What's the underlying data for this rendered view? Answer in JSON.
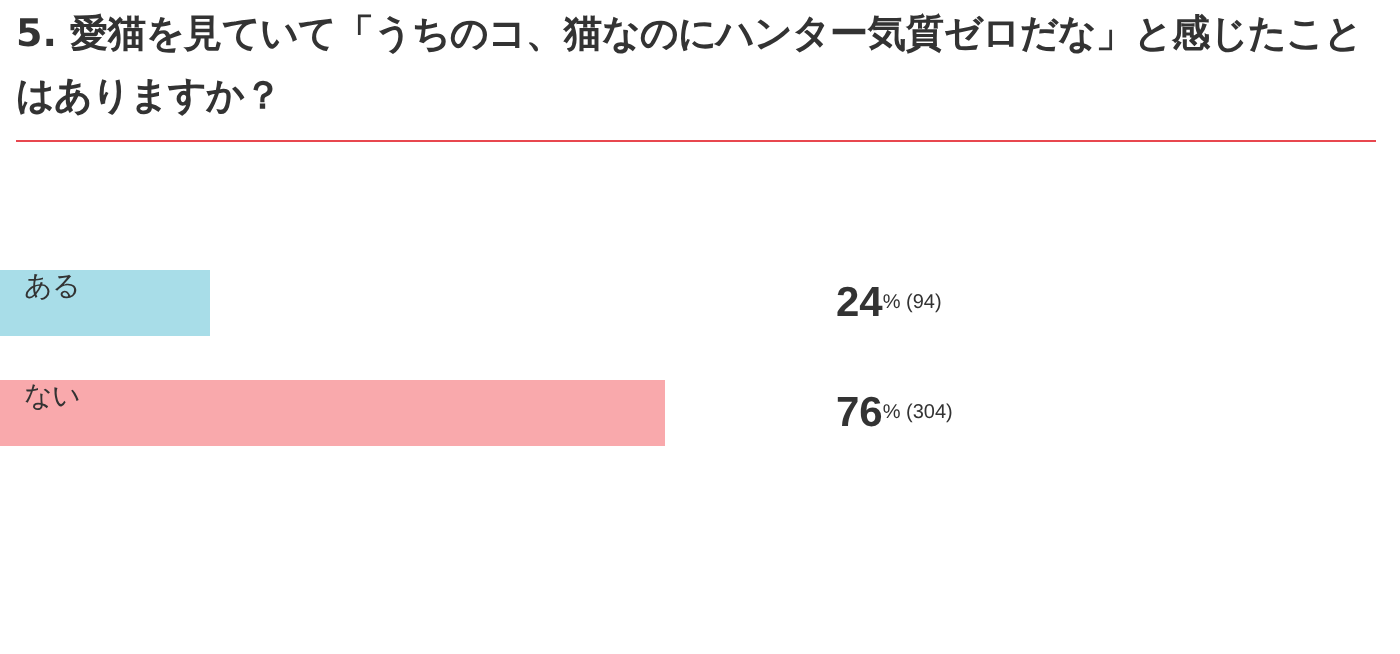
{
  "chart_data": {
    "type": "bar",
    "orientation": "horizontal",
    "title": "5. 愛猫を見ていて「うちのコ、猫なのにハンター気質ゼロだな」と感じたことはありますか？",
    "categories": [
      "ある",
      "ない"
    ],
    "values": [
      24,
      76
    ],
    "colors": [
      "#a8dde8",
      "#f9a9ac"
    ],
    "value_labels": [
      "24% (94)",
      "76% (304)"
    ]
  }
}
